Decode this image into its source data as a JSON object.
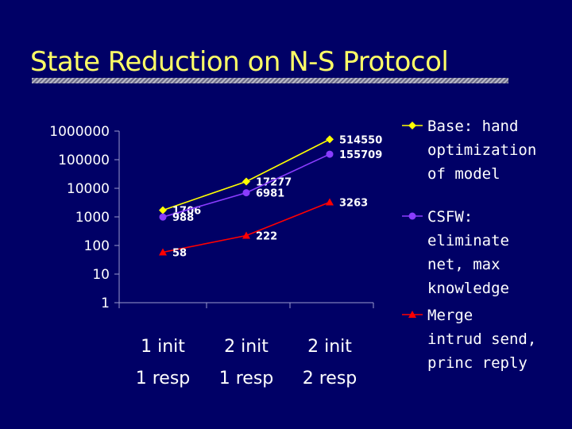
{
  "slide": {
    "title": "State Reduction on N-S Protocol"
  },
  "chart_data": {
    "type": "line",
    "y_scale": "log",
    "ylim": [
      1,
      1000000
    ],
    "y_ticks": [
      "1",
      "10",
      "100",
      "1000",
      "10000",
      "100000",
      "1000000"
    ],
    "categories": [
      [
        "1 init",
        "1 resp"
      ],
      [
        "2 init",
        "1 resp"
      ],
      [
        "2 init",
        "2 resp"
      ]
    ],
    "grid": false,
    "legend_position": "right",
    "series": [
      {
        "name": "Base: hand optimization of model",
        "legend_lines": [
          "Base: hand",
          "optimization",
          "of model"
        ],
        "values": [
          1706,
          17277,
          514550
        ],
        "labels": [
          "1706",
          "17277",
          "514550"
        ],
        "color": "#ffff00",
        "marker": "diamond"
      },
      {
        "name": "CSFW: eliminate net, max knowledge",
        "legend_lines": [
          "CSFW:",
          "eliminate",
          "net, max",
          "knowledge"
        ],
        "values": [
          988,
          6981,
          155709
        ],
        "labels": [
          "988",
          "6981",
          "155709"
        ],
        "color": "#8a3cff",
        "marker": "circle"
      },
      {
        "name": "Merge intrud send, princ reply",
        "legend_lines": [
          "Merge",
          "intrud send,",
          "princ reply"
        ],
        "values": [
          58,
          222,
          3263
        ],
        "labels": [
          "58",
          "222",
          "3263"
        ],
        "color": "#ff0000",
        "marker": "triangle"
      }
    ]
  }
}
